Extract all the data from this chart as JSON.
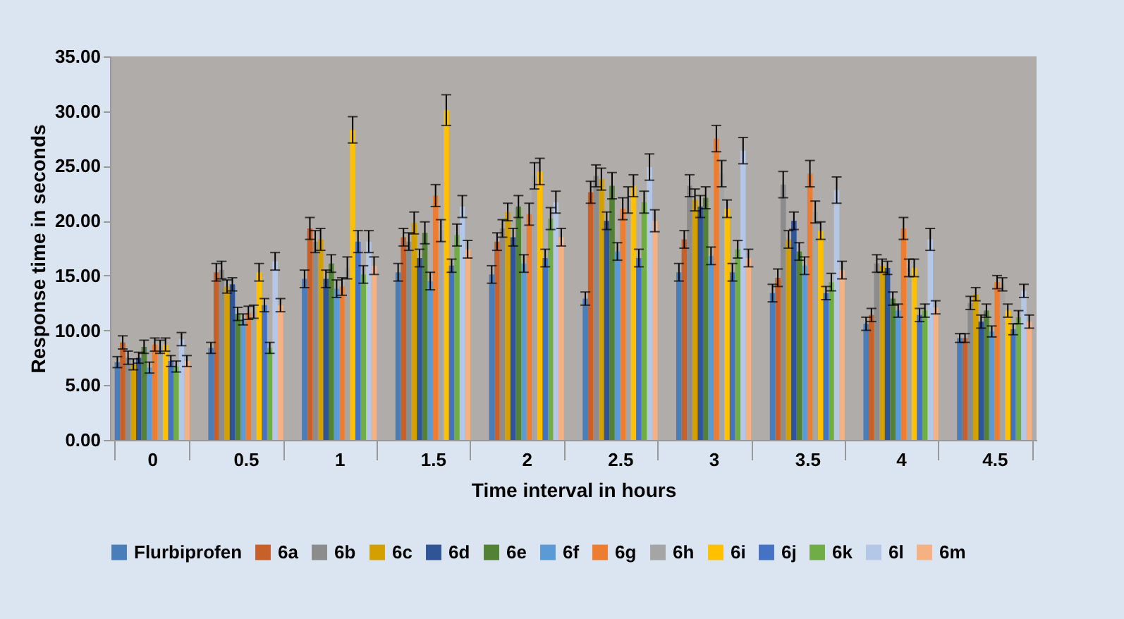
{
  "chart_data": {
    "type": "bar",
    "xlabel": "Time interval in hours",
    "ylabel": "Response time in seconds",
    "categories": [
      "0",
      "0.5",
      "1",
      "1.5",
      "2",
      "2.5",
      "3",
      "3.5",
      "4",
      "4.5"
    ],
    "ylim": [
      0,
      35
    ],
    "yticks": [
      {
        "value": 0,
        "label": "0.00"
      },
      {
        "value": 5,
        "label": "5.00"
      },
      {
        "value": 10,
        "label": "10.00"
      },
      {
        "value": 15,
        "label": "15.00"
      },
      {
        "value": 20,
        "label": "20.00"
      },
      {
        "value": 25,
        "label": "25.00"
      },
      {
        "value": 30,
        "label": "30.00"
      },
      {
        "value": 35,
        "label": "35.00"
      }
    ],
    "grid": false,
    "legend": "bottom",
    "series": [
      {
        "name": "Flurbiprofen",
        "color": "#4a7ebb",
        "values": [
          7.1,
          8.4,
          14.7,
          15.3,
          15.1,
          12.9,
          15.3,
          13.4,
          10.6,
          9.3
        ],
        "errors": [
          0.5,
          0.5,
          0.8,
          0.8,
          0.8,
          0.6,
          0.8,
          0.8,
          0.6,
          0.4
        ]
      },
      {
        "name": "6a",
        "color": "#c8602a",
        "values": [
          8.9,
          15.3,
          19.3,
          18.5,
          18.1,
          22.6,
          18.3,
          14.8,
          11.4,
          9.3
        ],
        "errors": [
          0.6,
          0.8,
          1,
          0.8,
          0.8,
          1,
          0.8,
          0.8,
          0.6,
          0.4
        ]
      },
      {
        "name": "6b",
        "color": "#8c8c8c",
        "values": [
          7.5,
          15.5,
          18.1,
          18.1,
          19.3,
          24.1,
          23.2,
          23.3,
          16.1,
          12.5
        ],
        "errors": [
          0.6,
          0.8,
          1,
          0.8,
          0.8,
          1,
          1,
          1.2,
          0.8,
          0.6
        ]
      },
      {
        "name": "6c",
        "color": "#d4a000",
        "values": [
          6.9,
          14.0,
          18.3,
          19.8,
          20.8,
          23.8,
          21.9,
          18.3,
          15.9,
          13.3
        ],
        "errors": [
          0.5,
          0.6,
          1,
          1,
          0.8,
          1,
          1,
          0.8,
          0.6,
          0.6
        ]
      },
      {
        "name": "6d",
        "color": "#2f5597",
        "values": [
          7.5,
          14.2,
          14.7,
          16.6,
          18.5,
          20.0,
          21.3,
          20.0,
          15.7,
          10.8
        ],
        "errors": [
          0.5,
          0.6,
          0.8,
          0.8,
          0.8,
          0.8,
          1,
          0.8,
          0.6,
          0.6
        ]
      },
      {
        "name": "6e",
        "color": "#538135",
        "values": [
          8.5,
          11.5,
          16.1,
          18.9,
          21.3,
          23.2,
          22.1,
          17.2,
          12.9,
          11.8
        ],
        "errors": [
          0.6,
          0.6,
          0.8,
          1,
          1,
          1.2,
          1,
          0.8,
          0.6,
          0.6
        ]
      },
      {
        "name": "6f",
        "color": "#5b9bd5",
        "values": [
          6.6,
          11.0,
          13.8,
          14.5,
          16.1,
          17.2,
          16.8,
          15.9,
          11.8,
          9.9
        ],
        "errors": [
          0.5,
          0.5,
          0.8,
          0.8,
          0.8,
          0.8,
          0.8,
          0.8,
          0.6,
          0.5
        ]
      },
      {
        "name": "6g",
        "color": "#ed7d31",
        "values": [
          8.7,
          11.6,
          14.0,
          22.3,
          20.6,
          21.1,
          27.5,
          24.3,
          19.3,
          14.4
        ],
        "errors": [
          0.6,
          0.6,
          0.8,
          1,
          1,
          1,
          1.2,
          1.2,
          1,
          0.6
        ]
      },
      {
        "name": "6h",
        "color": "#a5a5a5",
        "values": [
          8.5,
          11.7,
          15.7,
          19.1,
          24.1,
          21.9,
          24.3,
          20.8,
          15.7,
          14.2
        ],
        "errors": [
          0.6,
          0.6,
          1,
          1,
          1.2,
          1.2,
          1.2,
          1,
          0.8,
          0.6
        ]
      },
      {
        "name": "6i",
        "color": "#ffc000",
        "values": [
          8.7,
          15.3,
          28.3,
          30.1,
          24.5,
          23.2,
          21.1,
          19.1,
          15.7,
          11.8
        ],
        "errors": [
          0.6,
          0.8,
          1.2,
          1.4,
          1.2,
          1,
          0.8,
          0.8,
          0.8,
          0.6
        ]
      },
      {
        "name": "6j",
        "color": "#4472c4",
        "values": [
          7.2,
          12.3,
          18.1,
          15.9,
          16.6,
          16.6,
          15.3,
          13.4,
          11.4,
          10.1
        ],
        "errors": [
          0.5,
          0.6,
          1,
          0.6,
          0.8,
          0.8,
          0.8,
          0.6,
          0.6,
          0.5
        ]
      },
      {
        "name": "6k",
        "color": "#70ad47",
        "values": [
          6.7,
          8.4,
          15.1,
          18.7,
          20.2,
          21.7,
          17.4,
          14.4,
          11.8,
          11.2
        ],
        "errors": [
          0.5,
          0.5,
          0.8,
          1,
          1,
          1,
          0.8,
          0.8,
          0.6,
          0.6
        ]
      },
      {
        "name": "6l",
        "color": "#b4c7e7",
        "values": [
          9.2,
          16.3,
          18.1,
          21.3,
          21.7,
          24.9,
          26.4,
          22.8,
          18.3,
          13.6
        ],
        "errors": [
          0.6,
          0.8,
          1,
          1,
          1,
          1.2,
          1.2,
          1.2,
          1,
          0.6
        ]
      },
      {
        "name": "6m",
        "color": "#f4b183",
        "values": [
          7.2,
          12.3,
          15.9,
          17.4,
          18.5,
          20.0,
          16.6,
          15.5,
          12.1,
          10.8
        ],
        "errors": [
          0.5,
          0.6,
          0.8,
          0.8,
          0.8,
          1,
          0.8,
          0.8,
          0.6,
          0.6
        ]
      }
    ]
  }
}
